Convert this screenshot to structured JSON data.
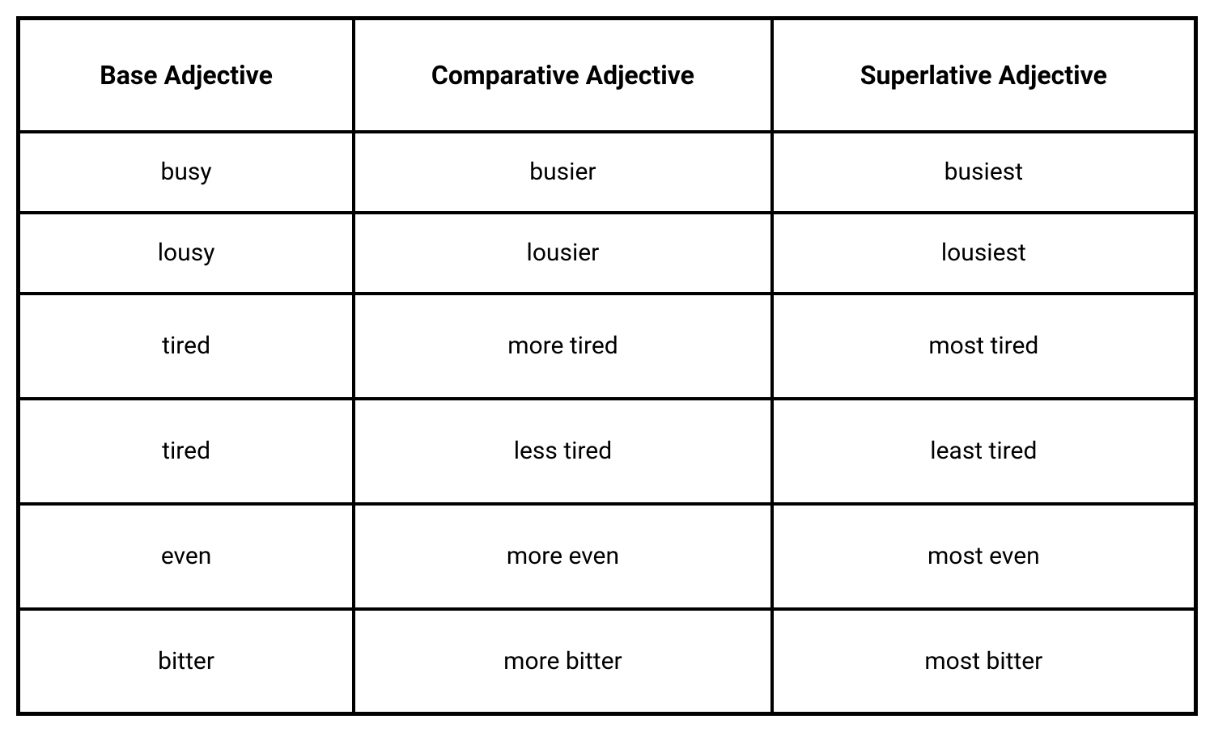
{
  "table": {
    "type": "table",
    "columns": [
      "Base Adjective",
      "Comparative Adjective",
      "Superlative Adjective"
    ],
    "rows": [
      [
        "busy",
        "busier",
        "busiest"
      ],
      [
        "lousy",
        "lousier",
        "lousiest"
      ],
      [
        "tired",
        "more tired",
        "most tired"
      ],
      [
        "tired",
        "less tired",
        "least tired"
      ],
      [
        "even",
        "more even",
        "most even"
      ],
      [
        "bitter",
        "more bitter",
        "most bitter"
      ]
    ],
    "border_color": "#000000",
    "border_width": 4,
    "outer_border_width": 5,
    "background_color": "#ffffff",
    "text_color": "#000000",
    "header_fontsize": 32,
    "header_fontweight": 700,
    "cell_fontsize": 30,
    "cell_fontweight": 400,
    "header_row_height": 140,
    "short_row_height": 100,
    "tall_row_height": 130,
    "column_widths_percent": [
      28.5,
      35.5,
      36
    ],
    "text_align": "center"
  }
}
